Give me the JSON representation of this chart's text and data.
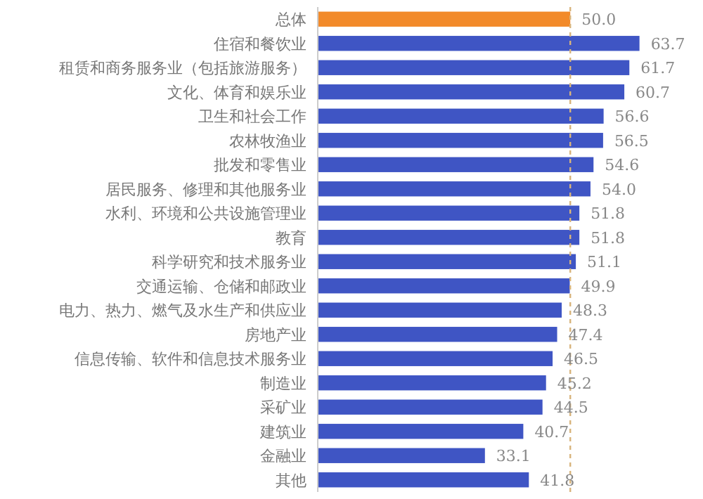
{
  "chart_data": {
    "type": "bar",
    "orientation": "horizontal",
    "categories": [
      "总体",
      "住宿和餐饮业",
      "租赁和商务服务业（包括旅游服务）",
      "文化、体育和娱乐业",
      "卫生和社会工作",
      "农林牧渔业",
      "批发和零售业",
      "居民服务、修理和其他服务业",
      "水利、环境和公共设施管理业",
      "教育",
      "科学研究和技术服务业",
      "交通运输、仓储和邮政业",
      "电力、热力、燃气及水生产和供应业",
      "房地产业",
      "信息传输、软件和信息技术服务业",
      "制造业",
      "采矿业",
      "建筑业",
      "金融业",
      "其他"
    ],
    "values": [
      50.0,
      63.7,
      61.7,
      60.7,
      56.6,
      56.5,
      54.6,
      54.0,
      51.8,
      51.8,
      51.1,
      49.9,
      48.3,
      47.4,
      46.5,
      45.2,
      44.5,
      40.7,
      33.1,
      41.8
    ],
    "colors": [
      "#f28a2a",
      "#3f55c4",
      "#3f55c4",
      "#3f55c4",
      "#3f55c4",
      "#3f55c4",
      "#3f55c4",
      "#3f55c4",
      "#3f55c4",
      "#3f55c4",
      "#3f55c4",
      "#3f55c4",
      "#3f55c4",
      "#3f55c4",
      "#3f55c4",
      "#3f55c4",
      "#3f55c4",
      "#3f55c4",
      "#3f55c4",
      "#3f55c4"
    ],
    "ref_lines": [
      {
        "axis": "x",
        "value": 50,
        "color": "#d8b47c",
        "line_style": "dashed"
      }
    ],
    "value_labels": [
      "50.0",
      "63.7",
      "61.7",
      "60.7",
      "56.6",
      "56.5",
      "54.6",
      "54.0",
      "51.8",
      "51.8",
      "51.1",
      "49.9",
      "48.3",
      "47.4",
      "46.5",
      "45.2",
      "44.5",
      "40.7",
      "33.1",
      "41.8"
    ]
  }
}
